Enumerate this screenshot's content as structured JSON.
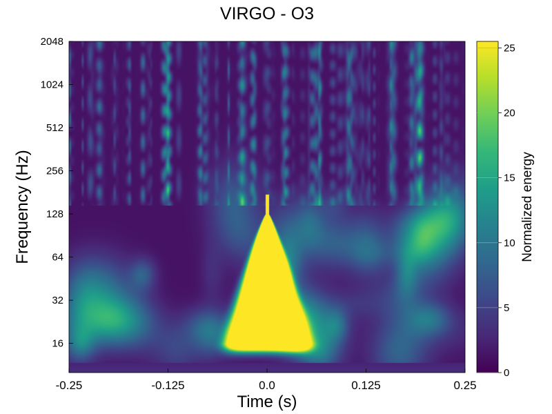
{
  "chart_data": {
    "type": "heatmap",
    "title": "VIRGO - O3",
    "xlabel": "Time (s)",
    "ylabel": "Frequency (Hz)",
    "colorbar_label": "Normalized energy",
    "xlim": [
      -0.25,
      0.25
    ],
    "ylim": [
      10,
      2048
    ],
    "y_scale": "log2",
    "x_ticks": [
      -0.25,
      -0.125,
      0.0,
      0.125,
      0.25
    ],
    "x_tick_labels": [
      "-0.25",
      "-0.125",
      "0.0",
      "0.125",
      "0.25"
    ],
    "y_ticks": [
      16,
      32,
      64,
      128,
      256,
      512,
      1024,
      2048
    ],
    "y_tick_labels": [
      "16",
      "32",
      "64",
      "128",
      "256",
      "512",
      "1024",
      "2048"
    ],
    "colorbar_range": [
      0,
      25.5
    ],
    "colorbar_ticks": [
      0,
      5,
      10,
      15,
      20,
      25
    ],
    "colorbar_tick_labels": [
      "0",
      "5",
      "10",
      "15",
      "20",
      "25"
    ],
    "colormap": "viridis",
    "colormap_stops": [
      "#440154",
      "#482878",
      "#3e4989",
      "#31688e",
      "#26828e",
      "#1f9e89",
      "#35b779",
      "#6ece58",
      "#b5de2b",
      "#fde725"
    ],
    "events": [
      {
        "t": 0.0,
        "f_low": 16,
        "f_high": 128,
        "peak_energy": 25.5
      }
    ],
    "grid": false
  }
}
